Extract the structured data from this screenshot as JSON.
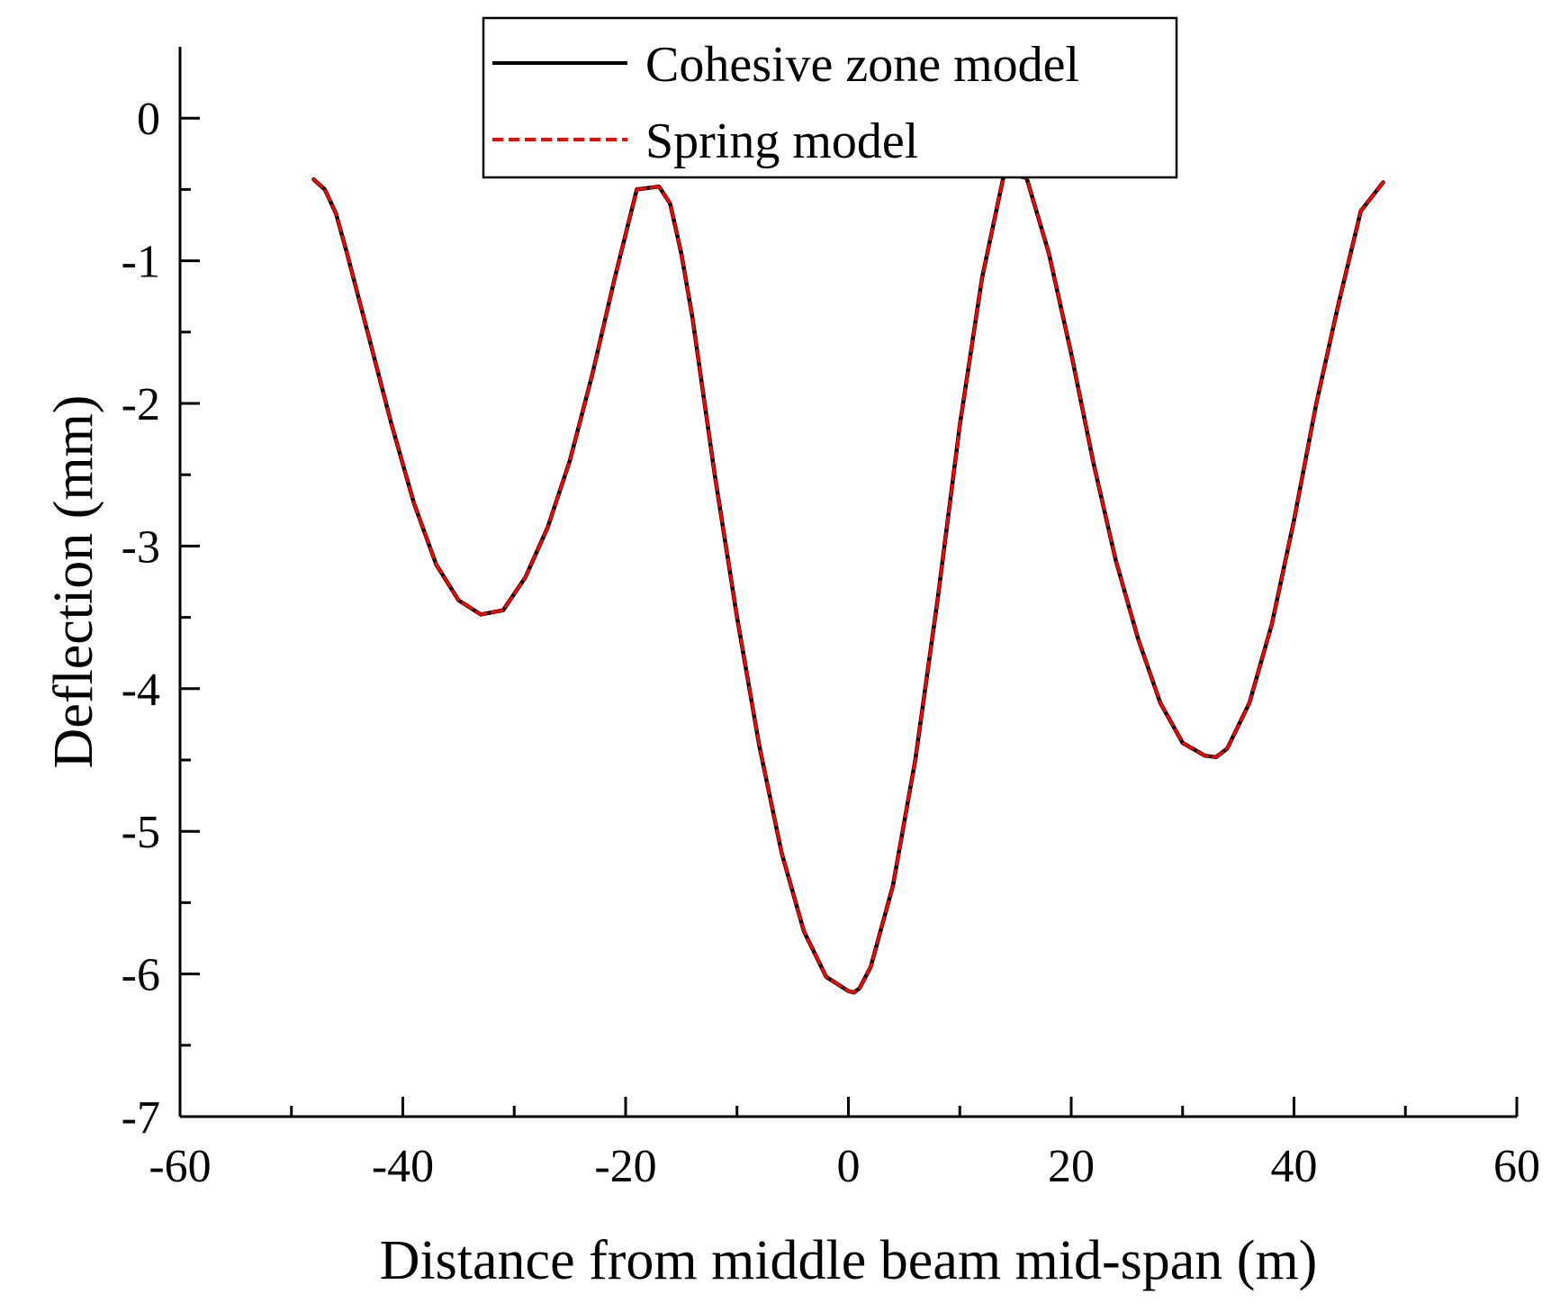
{
  "chart_data": {
    "type": "line",
    "title": "",
    "xlabel": "Distance from middle beam mid-span (m)",
    "ylabel": "Deflection (mm)",
    "xlim": [
      -60,
      60
    ],
    "ylim": [
      -7,
      0.5
    ],
    "x_ticks": [
      -60,
      -40,
      -20,
      0,
      20,
      40,
      60
    ],
    "x_tick_labels": [
      "-60",
      "-40",
      "-20",
      "0",
      "20",
      "40",
      "60"
    ],
    "y_ticks": [
      0,
      -1,
      -2,
      -3,
      -4,
      -5,
      -6,
      -7
    ],
    "y_tick_labels": [
      "0",
      "-1",
      "-2",
      "-3",
      "-4",
      "-5",
      "-6",
      "-7"
    ],
    "x_minor_step": 10,
    "y_minor_step": 0.5,
    "legend_position": "top-center",
    "series": [
      {
        "name": "Cohesive zone model",
        "color": "#000000",
        "style": "solid",
        "x": [
          -48,
          -47,
          -46,
          -45,
          -43,
          -41,
          -39,
          -37,
          -35,
          -33,
          -31,
          -29,
          -27,
          -25,
          -23,
          -21,
          -19,
          -17,
          -16,
          -15,
          -14,
          -12,
          -10,
          -8,
          -6,
          -4,
          -2,
          0,
          0.5,
          1,
          2,
          4,
          6,
          8,
          10,
          12,
          14,
          16,
          18,
          20,
          22,
          24,
          26,
          28,
          30,
          32,
          33,
          34,
          36,
          38,
          40,
          42,
          44,
          46,
          48
        ],
        "y": [
          -0.43,
          -0.5,
          -0.67,
          -0.95,
          -1.55,
          -2.15,
          -2.7,
          -3.13,
          -3.38,
          -3.48,
          -3.45,
          -3.22,
          -2.87,
          -2.4,
          -1.8,
          -1.13,
          -0.5,
          -0.48,
          -0.6,
          -0.95,
          -1.4,
          -2.5,
          -3.5,
          -4.4,
          -5.15,
          -5.7,
          -6.02,
          -6.12,
          -6.13,
          -6.1,
          -5.95,
          -5.38,
          -4.5,
          -3.38,
          -2.15,
          -1.12,
          -0.38,
          -0.42,
          -0.95,
          -1.65,
          -2.42,
          -3.1,
          -3.65,
          -4.1,
          -4.38,
          -4.47,
          -4.48,
          -4.42,
          -4.1,
          -3.55,
          -2.82,
          -2.0,
          -1.3,
          -0.65,
          -0.45
        ]
      },
      {
        "name": "Spring model",
        "color": "#ff0000",
        "style": "dashed",
        "x": [
          -48,
          -47,
          -46,
          -45,
          -43,
          -41,
          -39,
          -37,
          -35,
          -33,
          -31,
          -29,
          -27,
          -25,
          -23,
          -21,
          -19,
          -17,
          -16,
          -15,
          -14,
          -12,
          -10,
          -8,
          -6,
          -4,
          -2,
          0,
          0.5,
          1,
          2,
          4,
          6,
          8,
          10,
          12,
          14,
          16,
          18,
          20,
          22,
          24,
          26,
          28,
          30,
          32,
          33,
          34,
          36,
          38,
          40,
          42,
          44,
          46,
          48
        ],
        "y": [
          -0.43,
          -0.5,
          -0.67,
          -0.95,
          -1.55,
          -2.15,
          -2.7,
          -3.13,
          -3.38,
          -3.48,
          -3.45,
          -3.22,
          -2.87,
          -2.4,
          -1.8,
          -1.13,
          -0.5,
          -0.48,
          -0.6,
          -0.95,
          -1.4,
          -2.5,
          -3.5,
          -4.4,
          -5.15,
          -5.7,
          -6.02,
          -6.12,
          -6.13,
          -6.1,
          -5.95,
          -5.38,
          -4.5,
          -3.38,
          -2.15,
          -1.12,
          -0.38,
          -0.42,
          -0.95,
          -1.65,
          -2.42,
          -3.1,
          -3.65,
          -4.1,
          -4.38,
          -4.47,
          -4.48,
          -4.42,
          -4.1,
          -3.55,
          -2.82,
          -2.0,
          -1.3,
          -0.65,
          -0.45
        ]
      }
    ]
  }
}
